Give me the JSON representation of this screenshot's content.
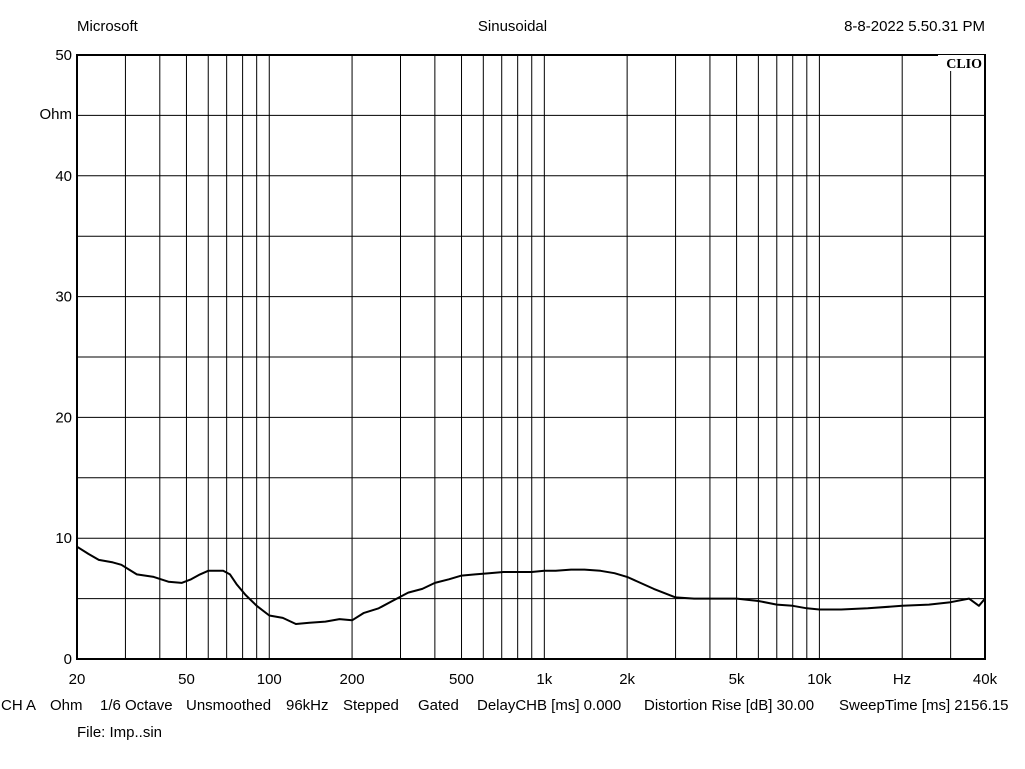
{
  "header": {
    "left": "Microsoft",
    "center": "Sinusoidal",
    "right": "8-8-2022 5.50.31 PM"
  },
  "brand": "CLIO",
  "footer": {
    "items": [
      "CH A",
      "Ohm",
      "1/6 Octave",
      "Unsmoothed",
      "96kHz",
      "Stepped",
      "Gated",
      "DelayCHB [ms] 0.000",
      "Distortion Rise [dB] 30.00",
      "SweepTime [ms] 2156.15"
    ],
    "file": "File: Imp..sin"
  },
  "chart_data": {
    "type": "line",
    "x_scale": "log",
    "xlim": [
      20,
      40000
    ],
    "ylim": [
      0,
      50
    ],
    "ylabel": "Ohm",
    "xlabel": "Hz",
    "y_ticks": [
      0,
      10,
      20,
      30,
      40,
      50
    ],
    "x_tick_labels": [
      {
        "value": 20,
        "label": "20"
      },
      {
        "value": 50,
        "label": "50"
      },
      {
        "value": 100,
        "label": "100"
      },
      {
        "value": 200,
        "label": "200"
      },
      {
        "value": 500,
        "label": "500"
      },
      {
        "value": 1000,
        "label": "1k"
      },
      {
        "value": 2000,
        "label": "2k"
      },
      {
        "value": 5000,
        "label": "5k"
      },
      {
        "value": 10000,
        "label": "10k"
      },
      {
        "value": 40000,
        "label": "40k"
      }
    ],
    "grid": true,
    "series": [
      {
        "x": [
          20,
          22,
          24,
          27,
          29,
          33,
          38,
          43,
          48,
          52,
          56,
          60,
          64,
          68,
          72,
          76,
          82,
          90,
          100,
          112,
          125,
          140,
          160,
          180,
          200,
          220,
          250,
          280,
          320,
          360,
          400,
          450,
          500,
          560,
          630,
          710,
          800,
          900,
          1000,
          1100,
          1250,
          1400,
          1600,
          1800,
          2000,
          2500,
          3000,
          3500,
          4000,
          5000,
          6000,
          7000,
          8000,
          9000,
          10000,
          12000,
          15000,
          20000,
          25000,
          30000,
          35000,
          38000,
          40000
        ],
        "y": [
          9.3,
          8.7,
          8.2,
          8.0,
          7.8,
          7.0,
          6.8,
          6.4,
          6.3,
          6.6,
          7.0,
          7.3,
          7.3,
          7.3,
          7.0,
          6.2,
          5.3,
          4.4,
          3.6,
          3.4,
          2.9,
          3.0,
          3.1,
          3.3,
          3.2,
          3.8,
          4.2,
          4.8,
          5.5,
          5.8,
          6.3,
          6.6,
          6.9,
          7.0,
          7.1,
          7.2,
          7.2,
          7.2,
          7.3,
          7.3,
          7.4,
          7.4,
          7.3,
          7.1,
          6.8,
          5.8,
          5.1,
          5.0,
          5.0,
          5.0,
          4.8,
          4.5,
          4.4,
          4.2,
          4.1,
          4.1,
          4.2,
          4.4,
          4.5,
          4.7,
          5.0,
          4.4,
          5.0
        ]
      }
    ]
  }
}
